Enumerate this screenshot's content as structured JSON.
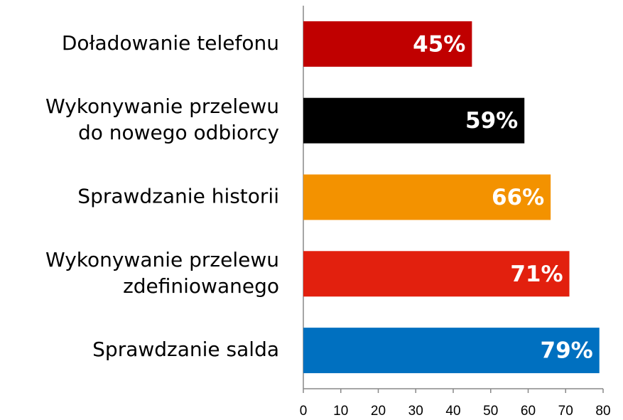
{
  "chart_data": {
    "type": "barh",
    "categories": [
      [
        "Doładowanie telefonu"
      ],
      [
        "Wykonywanie przelewu",
        "do nowego odbiorcy"
      ],
      [
        "Sprawdzanie historii"
      ],
      [
        "Wykonywanie przelewu",
        "zdefiniowanego"
      ],
      [
        "Sprawdzanie salda"
      ]
    ],
    "values": [
      45,
      59,
      66,
      71,
      79
    ],
    "value_labels": [
      "45%",
      "59%",
      "66%",
      "71%",
      "79%"
    ],
    "colors": [
      "#c00000",
      "#000000",
      "#f39200",
      "#e2200e",
      "#0070c0"
    ],
    "xlim": [
      0,
      80
    ],
    "xticks": [
      0,
      10,
      20,
      30,
      40,
      50,
      60,
      70,
      80
    ]
  }
}
